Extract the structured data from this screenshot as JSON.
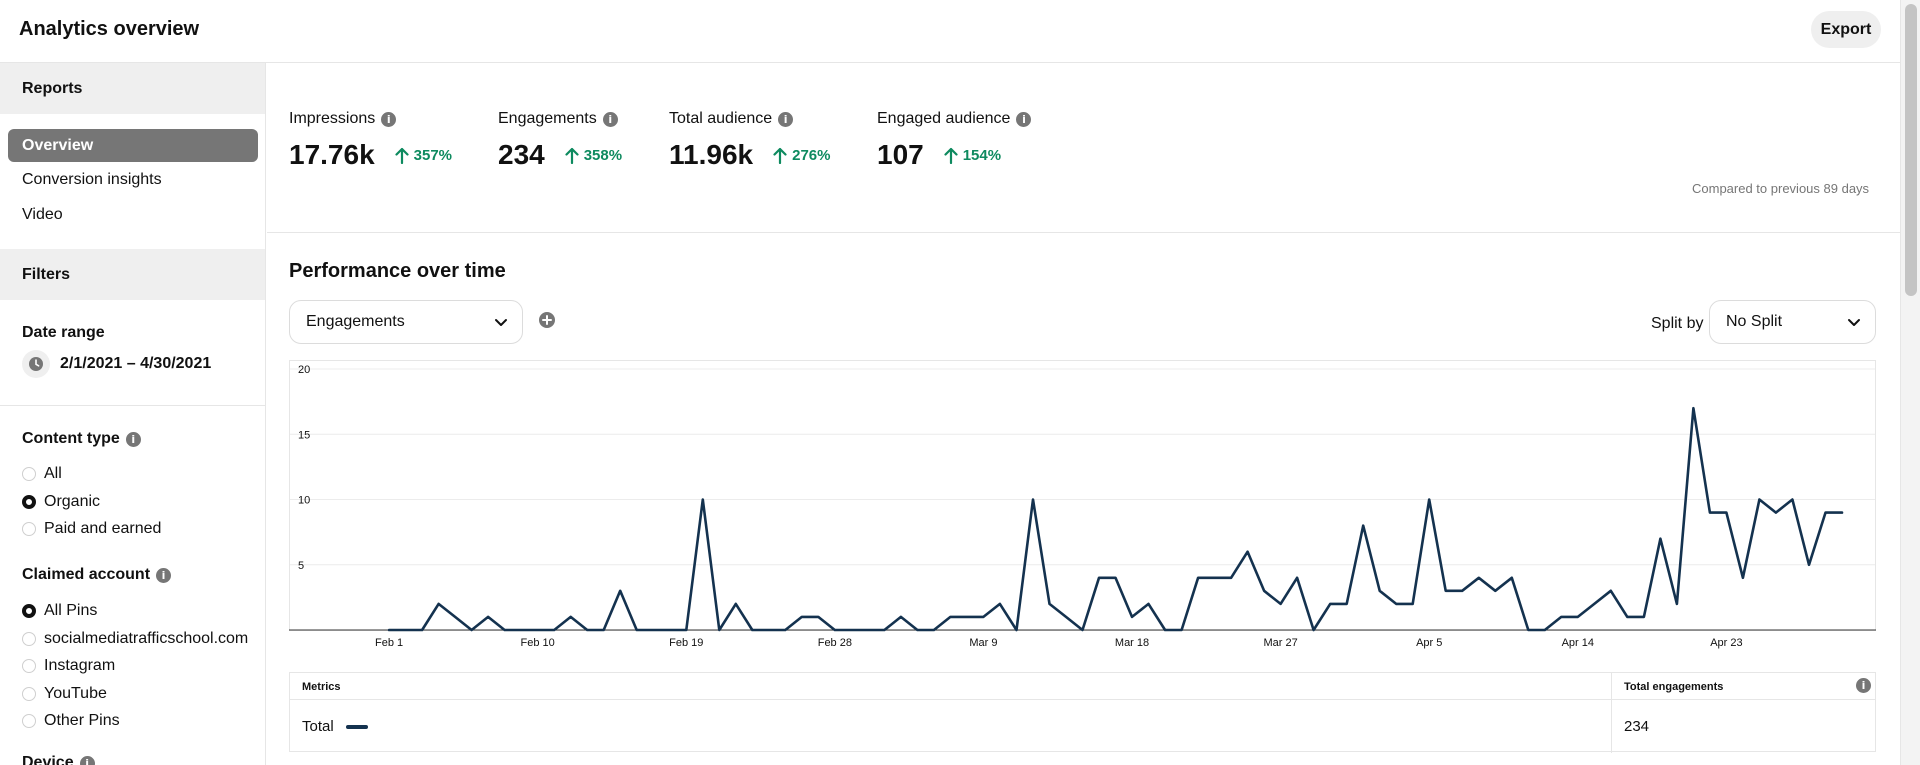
{
  "header": {
    "title": "Analytics overview",
    "export_label": "Export"
  },
  "sidebar": {
    "reports_heading": "Reports",
    "nav_items": [
      {
        "label": "Overview",
        "active": true
      },
      {
        "label": "Conversion insights",
        "active": false
      },
      {
        "label": "Video",
        "active": false
      }
    ],
    "filters_heading": "Filters",
    "date_range": {
      "heading": "Date range",
      "value": "2/1/2021 – 4/30/2021"
    },
    "content_type": {
      "heading": "Content type",
      "options": [
        {
          "label": "All",
          "checked": false
        },
        {
          "label": "Organic",
          "checked": true
        },
        {
          "label": "Paid and earned",
          "checked": false
        }
      ]
    },
    "claimed_account": {
      "heading": "Claimed account",
      "options": [
        {
          "label": "All Pins",
          "checked": true
        },
        {
          "label": "socialmediatrafficschool.com",
          "checked": false
        },
        {
          "label": "Instagram",
          "checked": false
        },
        {
          "label": "YouTube",
          "checked": false
        },
        {
          "label": "Other Pins",
          "checked": false
        }
      ]
    },
    "device_heading": "Device"
  },
  "kpis": [
    {
      "label": "Impressions",
      "value": "17.76k",
      "change": "357%"
    },
    {
      "label": "Engagements",
      "value": "234",
      "change": "358%"
    },
    {
      "label": "Total audience",
      "value": "11.96k",
      "change": "276%"
    },
    {
      "label": "Engaged audience",
      "value": "107",
      "change": "154%"
    }
  ],
  "compare_note": "Compared to previous 89 days",
  "performance": {
    "title": "Performance over time",
    "metric_select": "Engagements",
    "split_label": "Split by",
    "split_select": "No Split"
  },
  "colors": {
    "line": "#14324f",
    "positive": "#0e8a5f",
    "active_nav": "#767676"
  },
  "chart_data": {
    "type": "line",
    "x_tick_labels": [
      "Feb 1",
      "Feb 10",
      "Feb 19",
      "Feb 28",
      "Mar 9",
      "Mar 18",
      "Mar 27",
      "Apr 5",
      "Apr 14",
      "Apr 23"
    ],
    "x_tick_days": [
      0,
      9,
      18,
      27,
      36,
      45,
      54,
      63,
      72,
      81
    ],
    "y_ticks": [
      5,
      10,
      15,
      20
    ],
    "ylim": [
      0,
      20
    ],
    "xlim": [
      -6,
      90
    ],
    "series": [
      {
        "x": [
          0,
          1,
          2,
          3,
          4,
          5,
          6,
          7,
          8,
          9,
          10,
          11,
          12,
          13,
          14,
          15,
          16,
          17,
          18,
          19,
          20,
          21,
          22,
          23,
          24,
          25,
          26,
          27,
          28,
          29,
          30,
          31,
          32,
          33,
          34,
          35,
          36,
          37,
          38,
          39,
          40,
          41,
          42,
          43,
          44,
          45,
          46,
          47,
          48,
          49,
          50,
          51,
          52,
          53,
          54,
          55,
          56,
          57,
          58,
          59,
          60,
          61,
          62,
          63,
          64,
          65,
          66,
          67,
          68,
          69,
          70,
          71,
          72,
          73,
          74,
          75,
          76,
          77,
          78,
          79,
          80,
          81,
          82,
          83,
          84,
          85,
          86,
          87,
          88
        ],
        "values": [
          0,
          0,
          0,
          2,
          1,
          0,
          1,
          0,
          0,
          0,
          0,
          1,
          0,
          0,
          3,
          0,
          0,
          0,
          0,
          10,
          0,
          2,
          0,
          0,
          0,
          1,
          1,
          0,
          0,
          0,
          0,
          1,
          0,
          0,
          1,
          1,
          1,
          2,
          0,
          10,
          2,
          1,
          0,
          4,
          4,
          1,
          2,
          0,
          0,
          4,
          4,
          4,
          6,
          3,
          2,
          4,
          0,
          2,
          2,
          8,
          3,
          2,
          2,
          10,
          3,
          3,
          4,
          3,
          4,
          0,
          0,
          1,
          1,
          2,
          3,
          1,
          1,
          7,
          2,
          17,
          9,
          9,
          4,
          10,
          9,
          10,
          5,
          9,
          9
        ]
      }
    ]
  },
  "metrics_table": {
    "col_metrics": "Metrics",
    "col_total": "Total engagements",
    "row_label": "Total",
    "row_value": "234"
  }
}
